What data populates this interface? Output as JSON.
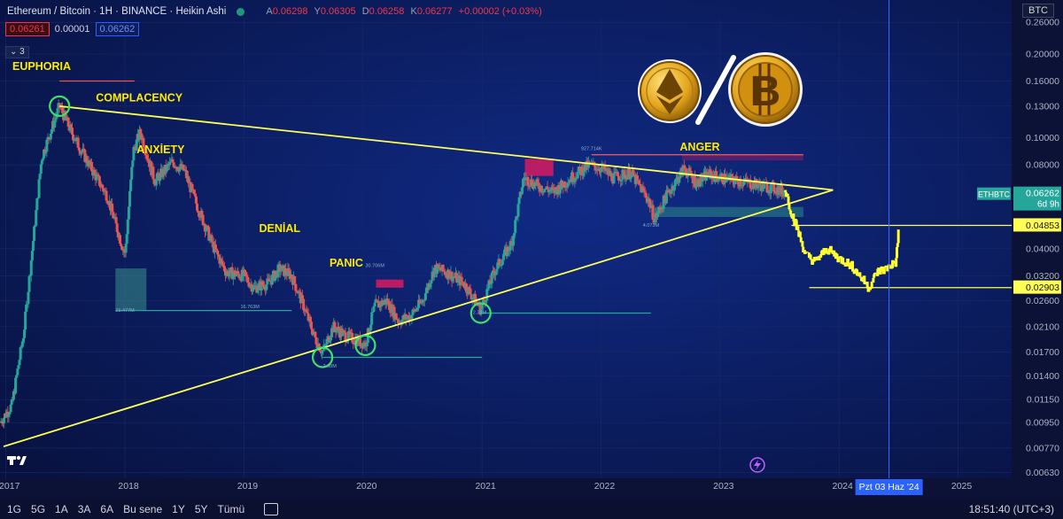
{
  "header": {
    "title": "Ethereum / Bitcoin · 1H · BINANCE · Heikin Ashi",
    "ohlc": [
      {
        "k": "A",
        "v": "0.06298"
      },
      {
        "k": "Y",
        "v": "0.06305"
      },
      {
        "k": "D",
        "v": "0.06258"
      },
      {
        "k": "K",
        "v": "0.06277"
      }
    ],
    "change": "+0.00002 (+0.03%)",
    "bid": "0.06261",
    "spread": "0.00001",
    "ask": "0.06262",
    "indicator_count": "3",
    "currency": "BTC"
  },
  "colors": {
    "background": "#0a1447",
    "up": "#26a69a",
    "down": "#ef5350",
    "trend": "#ffff55",
    "projection": "#ffff33"
  },
  "icons": [
    "ethereum-coin-icon",
    "bitcoin-coin-icon",
    "tradingview-logo-icon",
    "lightning-icon",
    "calendar-icon"
  ],
  "bottom_bar": {
    "ranges": [
      "1G",
      "5G",
      "1A",
      "3A",
      "6A",
      "Bu sene",
      "1Y",
      "5Y",
      "Tümü"
    ],
    "clock": "18:51:40 (UTC+3)"
  },
  "chart_data": {
    "type": "candlestick",
    "scale": "log",
    "ylim": [
      0.006,
      0.27
    ],
    "xlim": [
      2016.95,
      2025.45
    ],
    "y_ticks": [
      "0.26000",
      "0.20000",
      "0.16000",
      "0.13000",
      "0.10000",
      "0.08000",
      "0.06262",
      "0.04853",
      "0.04000",
      "0.03200",
      "0.02903",
      "0.02600",
      "0.02100",
      "0.01700",
      "0.01400",
      "0.01150",
      "0.00950",
      "0.00770",
      "0.00630"
    ],
    "y_tick_values": [
      0.26,
      0.2,
      0.16,
      0.13,
      0.1,
      0.08,
      0.04,
      0.032,
      0.026,
      0.021,
      0.017,
      0.014,
      0.0115,
      0.0095,
      0.0077,
      0.0063
    ],
    "x_ticks": [
      {
        "label": "2017",
        "x": 2017.0
      },
      {
        "label": "2018",
        "x": 2018.0
      },
      {
        "label": "2019",
        "x": 2019.0
      },
      {
        "label": "2020",
        "x": 2020.0
      },
      {
        "label": "2021",
        "x": 2021.0
      },
      {
        "label": "2022",
        "x": 2022.0
      },
      {
        "label": "2023",
        "x": 2023.0
      },
      {
        "label": "2024",
        "x": 2024.0
      },
      {
        "label": "2025",
        "x": 2025.0
      }
    ],
    "cursor_date": {
      "label": "Pzt 03 Haz '24",
      "x": 2024.42
    },
    "price_tags": [
      {
        "label": "ETHBTC",
        "value": "0.06262",
        "sub": "6d 9h",
        "kind": "current"
      },
      {
        "value": "0.04853",
        "kind": "level"
      },
      {
        "value": "0.02903",
        "kind": "level"
      }
    ],
    "phases": [
      {
        "label": "EUPHORIA",
        "x": 2017.3,
        "y": 0.175
      },
      {
        "label": "COMPLACENCY",
        "x": 2018.12,
        "y": 0.135
      },
      {
        "label": "ANXİETY",
        "x": 2018.3,
        "y": 0.088
      },
      {
        "label": "DENİAL",
        "x": 2019.3,
        "y": 0.046
      },
      {
        "label": "PANIC",
        "x": 2019.86,
        "y": 0.0345
      },
      {
        "label": "ANGER",
        "x": 2022.83,
        "y": 0.09
      }
    ],
    "small_labels": [
      {
        "text": "21.477M",
        "x": 2018.0,
        "y": 0.0238
      },
      {
        "text": "16.763M",
        "x": 2019.05,
        "y": 0.0245
      },
      {
        "text": "2.08M",
        "x": 2019.72,
        "y": 0.015
      },
      {
        "text": "30.706M",
        "x": 2020.1,
        "y": 0.0344
      },
      {
        "text": "2.33M",
        "x": 2020.98,
        "y": 0.0233
      },
      {
        "text": "927.714K",
        "x": 2021.92,
        "y": 0.0905
      },
      {
        "text": "4.073M",
        "x": 2022.42,
        "y": 0.048
      }
    ],
    "trendlines": [
      {
        "x1": 2017.45,
        "y1": 0.13,
        "x2": 2023.95,
        "y2": 0.065
      },
      {
        "x1": 2016.98,
        "y1": 0.0078,
        "x2": 2023.95,
        "y2": 0.065
      }
    ],
    "circles": [
      {
        "x": 2017.45,
        "y": 0.13
      },
      {
        "x": 2019.66,
        "y": 0.0163
      },
      {
        "x": 2020.02,
        "y": 0.018
      },
      {
        "x": 2020.99,
        "y": 0.0235
      }
    ],
    "price_path": [
      [
        2016.95,
        0.0095
      ],
      [
        2017.05,
        0.011
      ],
      [
        2017.15,
        0.02
      ],
      [
        2017.3,
        0.085
      ],
      [
        2017.45,
        0.13
      ],
      [
        2017.55,
        0.105
      ],
      [
        2017.7,
        0.08
      ],
      [
        2017.85,
        0.062
      ],
      [
        2018.0,
        0.038
      ],
      [
        2018.07,
        0.09
      ],
      [
        2018.13,
        0.105
      ],
      [
        2018.25,
        0.07
      ],
      [
        2018.4,
        0.082
      ],
      [
        2018.5,
        0.076
      ],
      [
        2018.6,
        0.058
      ],
      [
        2018.75,
        0.04
      ],
      [
        2018.85,
        0.033
      ],
      [
        2019.0,
        0.032
      ],
      [
        2019.08,
        0.029
      ],
      [
        2019.2,
        0.03
      ],
      [
        2019.3,
        0.034
      ],
      [
        2019.4,
        0.032
      ],
      [
        2019.5,
        0.025
      ],
      [
        2019.6,
        0.019
      ],
      [
        2019.66,
        0.017
      ],
      [
        2019.75,
        0.021
      ],
      [
        2019.85,
        0.0195
      ],
      [
        2020.02,
        0.0182
      ],
      [
        2020.1,
        0.025
      ],
      [
        2020.2,
        0.026
      ],
      [
        2020.3,
        0.022
      ],
      [
        2020.4,
        0.023
      ],
      [
        2020.5,
        0.026
      ],
      [
        2020.6,
        0.034
      ],
      [
        2020.7,
        0.033
      ],
      [
        2020.85,
        0.03
      ],
      [
        2020.99,
        0.0242
      ],
      [
        2021.1,
        0.033
      ],
      [
        2021.25,
        0.042
      ],
      [
        2021.35,
        0.072
      ],
      [
        2021.45,
        0.068
      ],
      [
        2021.6,
        0.064
      ],
      [
        2021.75,
        0.072
      ],
      [
        2021.9,
        0.08
      ],
      [
        2022.0,
        0.078
      ],
      [
        2022.1,
        0.072
      ],
      [
        2022.25,
        0.075
      ],
      [
        2022.4,
        0.06
      ],
      [
        2022.45,
        0.051
      ],
      [
        2022.55,
        0.062
      ],
      [
        2022.7,
        0.078
      ],
      [
        2022.8,
        0.069
      ],
      [
        2022.9,
        0.074
      ],
      [
        2023.0,
        0.072
      ],
      [
        2023.15,
        0.07
      ],
      [
        2023.3,
        0.068
      ],
      [
        2023.45,
        0.066
      ],
      [
        2023.55,
        0.064
      ]
    ],
    "projection_path": [
      [
        2023.55,
        0.065
      ],
      [
        2023.6,
        0.054
      ],
      [
        2023.65,
        0.047
      ],
      [
        2023.72,
        0.038
      ],
      [
        2023.8,
        0.036
      ],
      [
        2023.9,
        0.04
      ],
      [
        2024.0,
        0.037
      ],
      [
        2024.1,
        0.035
      ],
      [
        2024.2,
        0.031
      ],
      [
        2024.25,
        0.029
      ],
      [
        2024.32,
        0.033
      ],
      [
        2024.4,
        0.034
      ],
      [
        2024.48,
        0.036
      ],
      [
        2024.5,
        0.047
      ]
    ],
    "zones": [
      {
        "x1": 2017.92,
        "x2": 2018.18,
        "y1": 0.024,
        "y2": 0.034,
        "color": "#3a8f8a",
        "alpha": 0.55
      },
      {
        "x1": 2021.36,
        "x2": 2021.6,
        "y1": 0.073,
        "y2": 0.084,
        "color": "#d81b60",
        "alpha": 0.85
      },
      {
        "x1": 2020.11,
        "x2": 2020.34,
        "y1": 0.029,
        "y2": 0.031,
        "color": "#d81b60",
        "alpha": 0.85
      },
      {
        "x1": 2022.42,
        "x2": 2023.7,
        "y1": 0.052,
        "y2": 0.0565,
        "color": "#2c8c86",
        "alpha": 0.55
      },
      {
        "x1": 2022.68,
        "x2": 2023.7,
        "y1": 0.083,
        "y2": 0.087,
        "color": "#d81b60",
        "alpha": 0.35
      }
    ],
    "hlines": [
      {
        "x1": 2017.92,
        "x2": 2019.4,
        "y": 0.024,
        "color": "#26a69a"
      },
      {
        "x1": 2019.66,
        "x2": 2021.0,
        "y": 0.0163,
        "color": "#26a69a"
      },
      {
        "x1": 2020.99,
        "x2": 2022.42,
        "y": 0.0235,
        "color": "#26a69a"
      },
      {
        "x1": 2021.92,
        "x2": 2023.7,
        "y": 0.087,
        "color": "#ef5350"
      },
      {
        "x1": 2017.45,
        "x2": 2018.08,
        "y": 0.16,
        "color": "#ef5350"
      },
      {
        "x1": 2023.6,
        "x2": 2025.45,
        "y": 0.0485,
        "color": "#ffff55"
      },
      {
        "x1": 2023.75,
        "x2": 2025.45,
        "y": 0.029,
        "color": "#ffff55"
      }
    ]
  }
}
